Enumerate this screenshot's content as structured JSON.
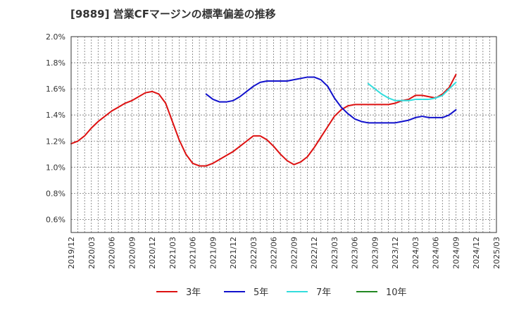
{
  "chart_data": {
    "type": "line",
    "title": "[9889]  営業CFマージンの標準偏差の推移",
    "xlabel": "",
    "ylabel": "",
    "ylim": [
      0.5,
      2.0
    ],
    "y_ticks": [
      0.6,
      0.8,
      1.0,
      1.2,
      1.4,
      1.6,
      1.8,
      2.0
    ],
    "y_tick_labels": [
      "0.6%",
      "0.8%",
      "1.0%",
      "1.2%",
      "1.4%",
      "1.6%",
      "1.8%",
      "2.0%"
    ],
    "x_range": [
      "2019-12",
      "2025-03"
    ],
    "x_tick_labels": [
      "2019/12",
      "2020/03",
      "2020/06",
      "2020/09",
      "2020/12",
      "2021/03",
      "2021/06",
      "2021/09",
      "2021/12",
      "2022/03",
      "2022/06",
      "2022/09",
      "2022/12",
      "2023/03",
      "2023/06",
      "2023/09",
      "2023/12",
      "2024/03",
      "2024/06",
      "2024/09",
      "2024/12",
      "2025/03"
    ],
    "grid": true,
    "legend_position": "bottom",
    "series": [
      {
        "name": "3年",
        "color": "#dd1111",
        "x": [
          "2019-12",
          "2020-01",
          "2020-02",
          "2020-03",
          "2020-04",
          "2020-05",
          "2020-06",
          "2020-07",
          "2020-08",
          "2020-09",
          "2020-10",
          "2020-11",
          "2020-12",
          "2021-01",
          "2021-02",
          "2021-03",
          "2021-04",
          "2021-05",
          "2021-06",
          "2021-07",
          "2021-08",
          "2021-09",
          "2021-10",
          "2021-11",
          "2021-12",
          "2022-01",
          "2022-02",
          "2022-03",
          "2022-04",
          "2022-05",
          "2022-06",
          "2022-07",
          "2022-08",
          "2022-09",
          "2022-10",
          "2022-11",
          "2022-12",
          "2023-01",
          "2023-02",
          "2023-03",
          "2023-04",
          "2023-05",
          "2023-06",
          "2023-07",
          "2023-08",
          "2023-09",
          "2023-10",
          "2023-11",
          "2023-12",
          "2024-01",
          "2024-02",
          "2024-03",
          "2024-04",
          "2024-05",
          "2024-06",
          "2024-07",
          "2024-08",
          "2024-09"
        ],
        "values": [
          1.18,
          1.2,
          1.24,
          1.3,
          1.35,
          1.39,
          1.43,
          1.46,
          1.49,
          1.51,
          1.54,
          1.57,
          1.58,
          1.56,
          1.49,
          1.35,
          1.21,
          1.1,
          1.03,
          1.01,
          1.01,
          1.03,
          1.06,
          1.09,
          1.12,
          1.16,
          1.2,
          1.24,
          1.24,
          1.21,
          1.16,
          1.1,
          1.05,
          1.02,
          1.04,
          1.08,
          1.15,
          1.23,
          1.31,
          1.39,
          1.44,
          1.47,
          1.48,
          1.48,
          1.48,
          1.48,
          1.48,
          1.48,
          1.49,
          1.51,
          1.52,
          1.55,
          1.55,
          1.54,
          1.53,
          1.56,
          1.61,
          1.71
        ]
      },
      {
        "name": "5年",
        "color": "#1111cc",
        "x": [
          "2021-08",
          "2021-09",
          "2021-10",
          "2021-11",
          "2021-12",
          "2022-01",
          "2022-02",
          "2022-03",
          "2022-04",
          "2022-05",
          "2022-06",
          "2022-07",
          "2022-08",
          "2022-09",
          "2022-10",
          "2022-11",
          "2022-12",
          "2023-01",
          "2023-02",
          "2023-03",
          "2023-04",
          "2023-05",
          "2023-06",
          "2023-07",
          "2023-08",
          "2023-09",
          "2023-10",
          "2023-11",
          "2023-12",
          "2024-01",
          "2024-02",
          "2024-03",
          "2024-04",
          "2024-05",
          "2024-06",
          "2024-07",
          "2024-08",
          "2024-09"
        ],
        "values": [
          1.56,
          1.52,
          1.5,
          1.5,
          1.51,
          1.54,
          1.58,
          1.62,
          1.65,
          1.66,
          1.66,
          1.66,
          1.66,
          1.67,
          1.68,
          1.69,
          1.69,
          1.67,
          1.62,
          1.53,
          1.46,
          1.41,
          1.37,
          1.35,
          1.34,
          1.34,
          1.34,
          1.34,
          1.34,
          1.35,
          1.36,
          1.38,
          1.39,
          1.38,
          1.38,
          1.38,
          1.4,
          1.44
        ]
      },
      {
        "name": "7年",
        "color": "#33dddd",
        "x": [
          "2023-08",
          "2023-09",
          "2023-10",
          "2023-11",
          "2023-12",
          "2024-01",
          "2024-02",
          "2024-03",
          "2024-04",
          "2024-05",
          "2024-06",
          "2024-07",
          "2024-08",
          "2024-09"
        ],
        "values": [
          1.64,
          1.6,
          1.56,
          1.53,
          1.51,
          1.51,
          1.51,
          1.52,
          1.52,
          1.52,
          1.53,
          1.55,
          1.6,
          1.65
        ]
      },
      {
        "name": "10年",
        "color": "#228822",
        "x": [],
        "values": []
      }
    ]
  }
}
